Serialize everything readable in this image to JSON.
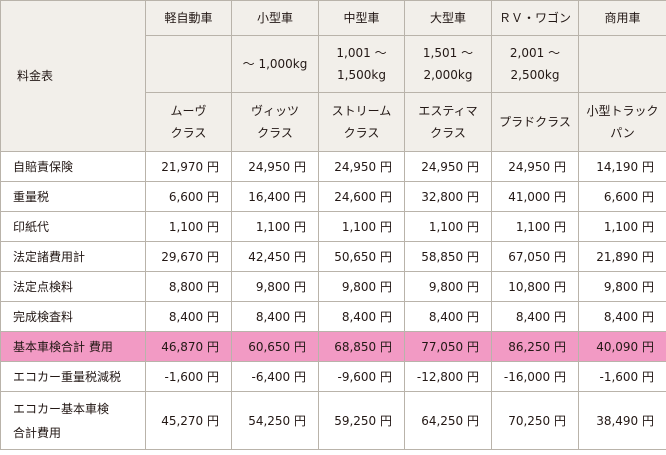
{
  "table": {
    "corner_label": "料金表",
    "columns": [
      {
        "class": "軽自動車",
        "weight": "",
        "model": "ムーヴ\nクラス"
      },
      {
        "class": "小型車",
        "weight": "〜 1,000kg",
        "model": "ヴィッツ\nクラス"
      },
      {
        "class": "中型車",
        "weight": "1,001 〜\n1,500kg",
        "model": "ストリーム\nクラス"
      },
      {
        "class": "大型車",
        "weight": "1,501 〜\n2,000kg",
        "model": "エスティマ\nクラス"
      },
      {
        "class": "ＲＶ・ワゴン",
        "weight": "2,001 〜\n2,500kg",
        "model": "プラドクラス"
      },
      {
        "class": "商用車",
        "weight": "",
        "model": "小型トラック\nパン"
      }
    ],
    "rows": [
      {
        "label": "自賠責保険",
        "values": [
          "21,970 円",
          "24,950 円",
          "24,950 円",
          "24,950 円",
          "24,950 円",
          "14,190 円"
        ]
      },
      {
        "label": "重量税",
        "values": [
          "6,600 円",
          "16,400 円",
          "24,600 円",
          "32,800 円",
          "41,000 円",
          "6,600 円"
        ]
      },
      {
        "label": "印紙代",
        "values": [
          "1,100 円",
          "1,100 円",
          "1,100 円",
          "1,100 円",
          "1,100 円",
          "1,100 円"
        ]
      },
      {
        "label": "法定諸費用計",
        "values": [
          "29,670 円",
          "42,450 円",
          "50,650 円",
          "58,850 円",
          "67,050 円",
          "21,890 円"
        ]
      },
      {
        "label": "法定点検料",
        "values": [
          "8,800 円",
          "9,800 円",
          "9,800 円",
          "9,800 円",
          "10,800 円",
          "9,800 円"
        ]
      },
      {
        "label": "完成検査料",
        "values": [
          "8,400 円",
          "8,400 円",
          "8,400 円",
          "8,400 円",
          "8,400 円",
          "8,400 円"
        ]
      },
      {
        "label": "基本車検合計 費用",
        "values": [
          "46,870 円",
          "60,650 円",
          "68,850 円",
          "77,050 円",
          "86,250 円",
          "40,090 円"
        ],
        "highlight": true
      },
      {
        "label": "エコカー重量税減税",
        "values": [
          "-1,600 円",
          "-6,400 円",
          "-9,600 円",
          "-12,800 円",
          "-16,000 円",
          "-1,600 円"
        ]
      },
      {
        "label": "エコカー基本車検\n合計費用",
        "values": [
          "45,270 円",
          "54,250 円",
          "59,250 円",
          "64,250 円",
          "70,250 円",
          "38,490 円"
        ]
      }
    ],
    "highlight_color": "#f29ac4",
    "header_bg": "#f2efea",
    "border_color": "#b9b3aa"
  }
}
